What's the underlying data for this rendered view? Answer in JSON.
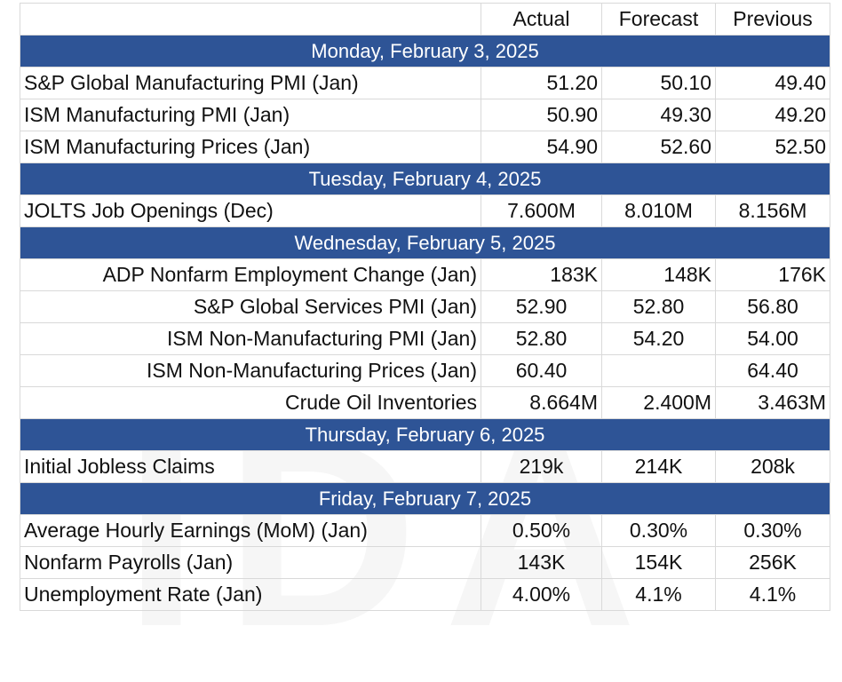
{
  "headers": {
    "blank": "",
    "actual": "Actual",
    "forecast": "Forecast",
    "previous": "Previous"
  },
  "days": [
    {
      "label": "Monday, February 3, 2025",
      "events": [
        {
          "name": "S&P Global Manufacturing PMI (Jan)",
          "actual": "51.20",
          "forecast": "50.10",
          "previous": "49.40"
        },
        {
          "name": "ISM Manufacturing PMI (Jan)",
          "actual": "50.90",
          "forecast": "49.30",
          "previous": "49.20"
        },
        {
          "name": "ISM Manufacturing Prices (Jan)",
          "actual": "54.90",
          "forecast": "52.60",
          "previous": "52.50"
        }
      ]
    },
    {
      "label": "Tuesday, February 4, 2025",
      "events": [
        {
          "name": "JOLTS Job Openings (Dec)",
          "actual": "7.600M",
          "forecast": "8.010M",
          "previous": "8.156M"
        }
      ]
    },
    {
      "label": "Wednesday, February 5, 2025",
      "events": [
        {
          "name": "ADP Nonfarm Employment Change (Jan)",
          "actual": "183K",
          "forecast": "148K",
          "previous": "176K"
        },
        {
          "name": "S&P Global Services PMI (Jan)",
          "actual": "52.90",
          "forecast": "52.80",
          "previous": "56.80"
        },
        {
          "name": "ISM Non-Manufacturing PMI (Jan)",
          "actual": "52.80",
          "forecast": "54.20",
          "previous": "54.00"
        },
        {
          "name": "ISM Non-Manufacturing Prices (Jan)",
          "actual": "60.40",
          "forecast": "",
          "previous": "64.40"
        },
        {
          "name": "Crude Oil Inventories",
          "actual": "8.664M",
          "forecast": "2.400M",
          "previous": "3.463M"
        }
      ]
    },
    {
      "label": "Thursday, February 6, 2025",
      "events": [
        {
          "name": "Initial Jobless Claims",
          "actual": "219k",
          "forecast": "214K",
          "previous": "208k"
        }
      ]
    },
    {
      "label": "Friday, February 7, 2025",
      "events": [
        {
          "name": "Average Hourly Earnings (MoM) (Jan)",
          "actual": "0.50%",
          "forecast": "0.30%",
          "previous": "0.30%"
        },
        {
          "name": "Nonfarm Payrolls (Jan)",
          "actual": "143K",
          "forecast": "154K",
          "previous": "256K"
        },
        {
          "name": "Unemployment Rate (Jan)",
          "actual": "4.00%",
          "forecast": "4.1%",
          "previous": "4.1%"
        }
      ]
    }
  ],
  "colors": {
    "day_header_bg": "#2e5496",
    "day_header_text": "#ffffff",
    "grid": "#d9d9d9"
  }
}
